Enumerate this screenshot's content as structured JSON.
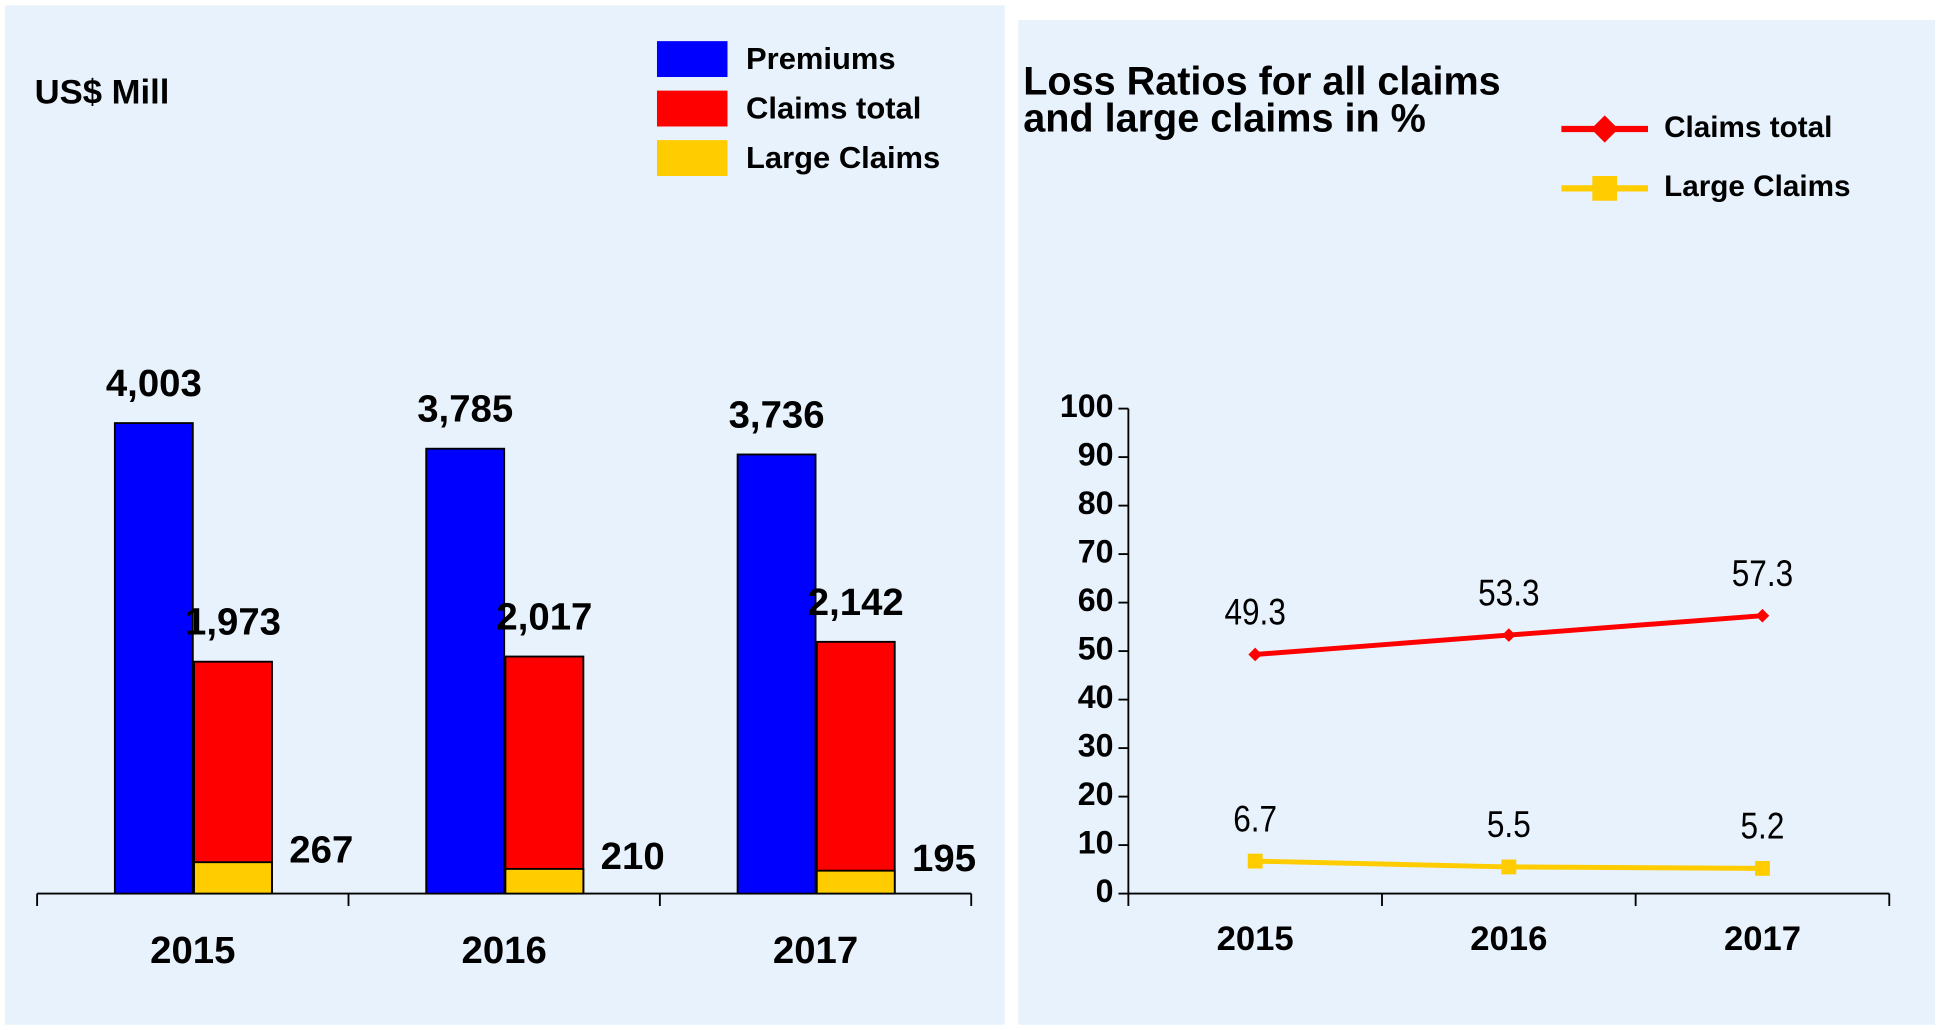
{
  "chart_data": [
    {
      "type": "bar",
      "y_label": "US$ Mill",
      "categories": [
        "2015",
        "2016",
        "2017"
      ],
      "ylim": [
        0,
        5000
      ],
      "series": [
        {
          "name": "Premiums",
          "color": "#0000ff",
          "values": [
            4003,
            3785,
            3736
          ],
          "value_labels": [
            "4,003",
            "3,785",
            "3,736"
          ]
        },
        {
          "name": "Claims total",
          "color": "#ff0000",
          "values": [
            1973,
            2017,
            2142
          ],
          "value_labels": [
            "1,973",
            "2,017",
            "2,142"
          ]
        },
        {
          "name": "Large Claims",
          "color": "#ffcc00",
          "values": [
            267,
            210,
            195
          ]
        }
      ]
    },
    {
      "type": "line",
      "title": "Loss Ratios for all claims and large claims in %",
      "categories": [
        "2015",
        "2016",
        "2017"
      ],
      "ylim": [
        0,
        100
      ],
      "yticks": [
        0,
        10,
        20,
        30,
        40,
        50,
        60,
        70,
        80,
        90,
        100
      ],
      "series": [
        {
          "name": "Claims total",
          "color": "#ff0000",
          "marker": "diamond",
          "values": [
            49.3,
            53.3,
            57.3
          ]
        },
        {
          "name": "Large Claims",
          "color": "#ffcc00",
          "marker": "square",
          "values": [
            6.7,
            5.5,
            5.2
          ]
        }
      ]
    }
  ]
}
